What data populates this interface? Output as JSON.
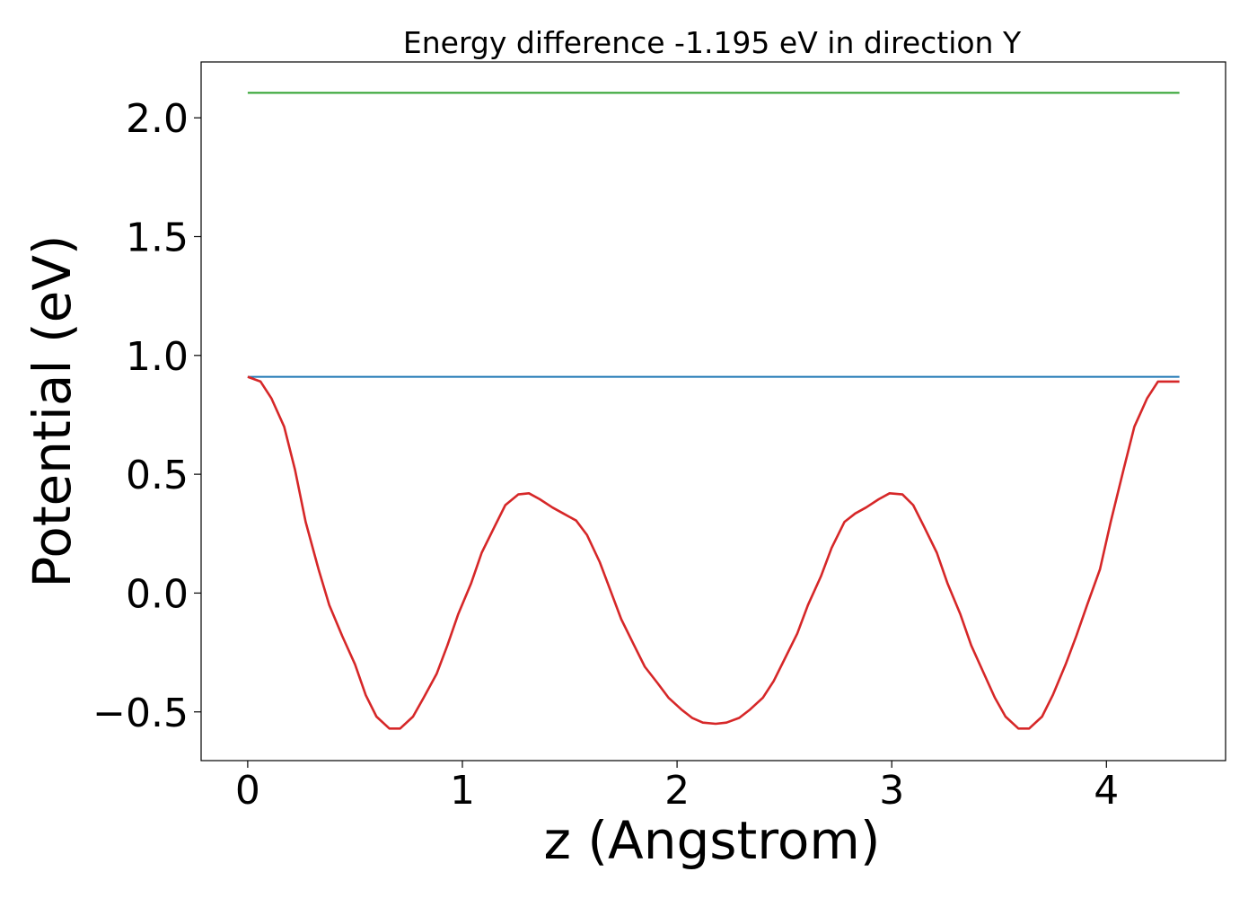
{
  "chart_data": {
    "type": "line",
    "title": "Energy difference -1.195 eV in direction Y",
    "xlabel": "z (Angstrom)",
    "ylabel": "Potential (eV)",
    "xlim": [
      -0.217,
      4.555
    ],
    "ylim": [
      -0.705,
      2.235
    ],
    "xticks": [
      0,
      1,
      2,
      3,
      4
    ],
    "xtick_labels": [
      "0",
      "1",
      "2",
      "3",
      "4"
    ],
    "yticks": [
      -0.5,
      0.0,
      0.5,
      1.0,
      1.5,
      2.0
    ],
    "ytick_labels": [
      "−0.5",
      "0.0",
      "0.5",
      "1.0",
      "1.5",
      "2.0"
    ],
    "grid": false,
    "legend": "none",
    "series": [
      {
        "color": "#2ca02c",
        "x": [
          0,
          4.34
        ],
        "y": [
          2.105,
          2.105
        ]
      },
      {
        "color": "#1f77b4",
        "x": [
          0,
          4.34
        ],
        "y": [
          0.91,
          0.91
        ]
      },
      {
        "color": "#d62728",
        "x": [
          0,
          0.06,
          0.11,
          0.17,
          0.22,
          0.27,
          0.33,
          0.38,
          0.44,
          0.5,
          0.55,
          0.6,
          0.66,
          0.71,
          0.77,
          0.82,
          0.88,
          0.93,
          0.98,
          1.04,
          1.09,
          1.15,
          1.2,
          1.26,
          1.31,
          1.36,
          1.42,
          1.47,
          1.53,
          1.58,
          1.64,
          1.69,
          1.74,
          1.8,
          1.85,
          1.91,
          1.96,
          2.02,
          2.07,
          2.12,
          2.18,
          2.23,
          2.29,
          2.34,
          2.4,
          2.45,
          2.5,
          2.56,
          2.61,
          2.67,
          2.72,
          2.78,
          2.83,
          2.88,
          2.94,
          2.99,
          3.05,
          3.1,
          3.15,
          3.21,
          3.26,
          3.32,
          3.37,
          3.43,
          3.48,
          3.53,
          3.59,
          3.64,
          3.7,
          3.75,
          3.81,
          3.86,
          3.91,
          3.97,
          4.02,
          4.08,
          4.13,
          4.19,
          4.24,
          4.29,
          4.34
        ],
        "y": [
          0.91,
          0.89,
          0.82,
          0.7,
          0.52,
          0.3,
          0.1,
          -0.05,
          -0.18,
          -0.3,
          -0.43,
          -0.52,
          -0.57,
          -0.57,
          -0.52,
          -0.44,
          -0.34,
          -0.22,
          -0.09,
          0.04,
          0.17,
          0.28,
          0.37,
          0.415,
          0.42,
          0.395,
          0.36,
          0.335,
          0.305,
          0.245,
          0.13,
          0.01,
          -0.11,
          -0.22,
          -0.31,
          -0.38,
          -0.44,
          -0.49,
          -0.525,
          -0.545,
          -0.55,
          -0.545,
          -0.525,
          -0.49,
          -0.44,
          -0.37,
          -0.28,
          -0.17,
          -0.05,
          0.07,
          0.19,
          0.3,
          0.335,
          0.36,
          0.395,
          0.42,
          0.415,
          0.37,
          0.28,
          0.17,
          0.04,
          -0.09,
          -0.22,
          -0.34,
          -0.44,
          -0.52,
          -0.57,
          -0.57,
          -0.52,
          -0.43,
          -0.3,
          -0.18,
          -0.05,
          0.1,
          0.3,
          0.52,
          0.7,
          0.82,
          0.89,
          0.89,
          0.89
        ]
      }
    ]
  }
}
